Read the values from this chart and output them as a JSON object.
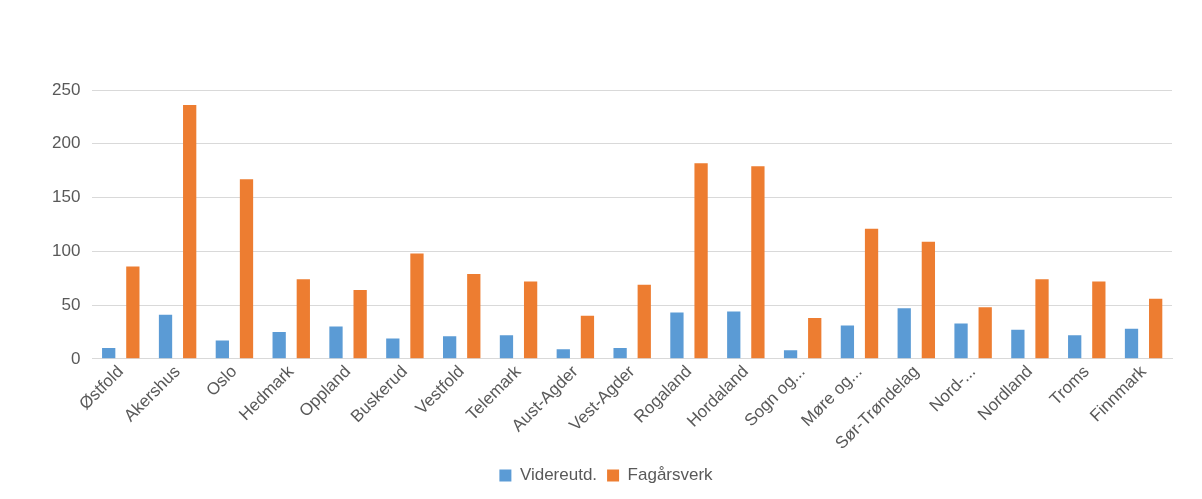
{
  "chart_data": {
    "type": "bar",
    "categories": [
      "Østfold",
      "Akershus",
      "Oslo",
      "Hedmark",
      "Oppland",
      "Buskerud",
      "Vestfold",
      "Telemark",
      "Aust-Agder",
      "Vest-Agder",
      "Rogaland",
      "Hordaland",
      "Sogn og...",
      "Møre og...",
      "Sør-Trøndelag",
      "Nord-...",
      "Nordland",
      "Troms",
      "Finnmark"
    ],
    "series": [
      {
        "name": "Videreutd.",
        "color": "#5b9bd5",
        "values": [
          10,
          41,
          17,
          25,
          30,
          19,
          21,
          22,
          9,
          10,
          43,
          44,
          8,
          31,
          47,
          33,
          27,
          22,
          28
        ]
      },
      {
        "name": "Fagårsverk",
        "color": "#ed7d31",
        "values": [
          86,
          236,
          167,
          74,
          64,
          98,
          79,
          72,
          40,
          69,
          182,
          179,
          38,
          121,
          109,
          48,
          74,
          72,
          56
        ]
      }
    ],
    "ylim": [
      0,
      250
    ],
    "yticks": [
      0,
      50,
      100,
      150,
      200,
      250
    ],
    "grid": "y",
    "legend": "bottom"
  }
}
